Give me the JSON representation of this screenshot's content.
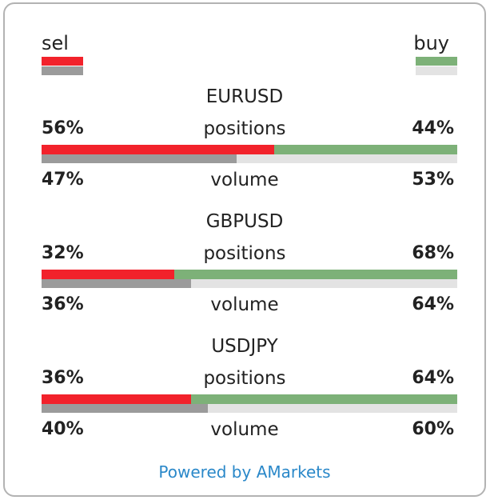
{
  "legend": {
    "sell_label": "sel",
    "buy_label": "buy"
  },
  "colors": {
    "sell_positions": "#f2222b",
    "buy_positions": "#7db178",
    "sell_volume": "#9b9b9b",
    "buy_volume": "#e3e3e3",
    "footer_link": "#2a88c9",
    "border": "#b3b3b3"
  },
  "pairs": [
    {
      "name": "EURUSD",
      "positions_label": "positions",
      "volume_label": "volume",
      "positions_sell": "56%",
      "positions_buy": "44%",
      "volume_sell": "47%",
      "volume_buy": "53%",
      "positions_sell_value": 56,
      "volume_sell_value": 47
    },
    {
      "name": "GBPUSD",
      "positions_label": "positions",
      "volume_label": "volume",
      "positions_sell": "32%",
      "positions_buy": "68%",
      "volume_sell": "36%",
      "volume_buy": "64%",
      "positions_sell_value": 32,
      "volume_sell_value": 36
    },
    {
      "name": "USDJPY",
      "positions_label": "positions",
      "volume_label": "volume",
      "positions_sell": "36%",
      "positions_buy": "64%",
      "volume_sell": "40%",
      "volume_buy": "60%",
      "positions_sell_value": 36,
      "volume_sell_value": 40
    }
  ],
  "footer": {
    "text": "Powered by AMarkets"
  }
}
